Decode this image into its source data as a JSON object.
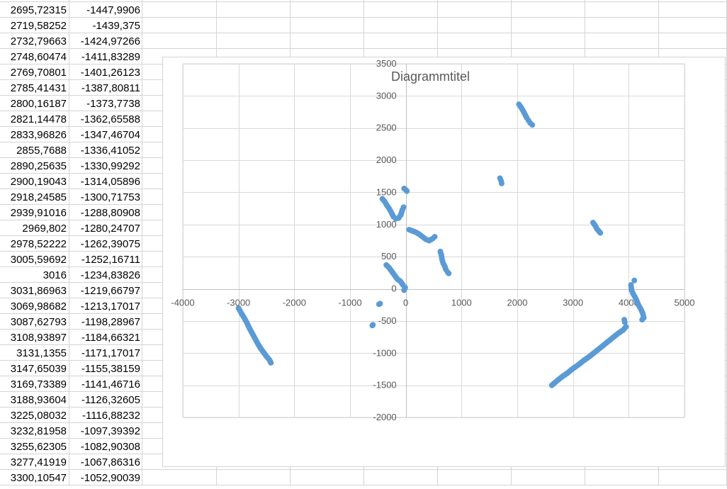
{
  "spreadsheet": {
    "rows": [
      [
        "2695,72315",
        "-1447,9906"
      ],
      [
        "2719,58252",
        "-1439,375"
      ],
      [
        "2732,79663",
        "-1424,97266"
      ],
      [
        "2748,60474",
        "-1411,83289"
      ],
      [
        "2769,70801",
        "-1401,26123"
      ],
      [
        "2785,41431",
        "-1387,80811"
      ],
      [
        "2800,16187",
        "-1373,7738"
      ],
      [
        "2821,14478",
        "-1362,65588"
      ],
      [
        "2833,96826",
        "-1347,46704"
      ],
      [
        "2855,7688",
        "-1336,41052"
      ],
      [
        "2890,25635",
        "-1330,99292"
      ],
      [
        "2900,19043",
        "-1314,05896"
      ],
      [
        "2918,24585",
        "-1300,71753"
      ],
      [
        "2939,91016",
        "-1288,80908"
      ],
      [
        "2969,802",
        "-1280,24707"
      ],
      [
        "2978,52222",
        "-1262,39075"
      ],
      [
        "3005,59692",
        "-1252,16711"
      ],
      [
        "3016",
        "-1234,83826"
      ],
      [
        "3031,86963",
        "-1219,66797"
      ],
      [
        "3069,98682",
        "-1213,17017"
      ],
      [
        "3087,62793",
        "-1198,28967"
      ],
      [
        "3108,93897",
        "-1184,66321"
      ],
      [
        "3131,1355",
        "-1171,17017"
      ],
      [
        "3147,65039",
        "-1155,38159"
      ],
      [
        "3169,73389",
        "-1141,46716"
      ],
      [
        "3188,93604",
        "-1126,32605"
      ],
      [
        "3225,08032",
        "-1116,88232"
      ],
      [
        "3232,81958",
        "-1097,39392"
      ],
      [
        "3255,62305",
        "-1082,90308"
      ],
      [
        "3277,41919",
        "-1067,86316"
      ],
      [
        "3300,10547",
        "-1052,90039"
      ]
    ]
  },
  "chart_data": {
    "type": "scatter",
    "title": "Diagrammtitel",
    "xlim": [
      -4000,
      5000
    ],
    "ylim": [
      -2000,
      3500
    ],
    "x_ticks": [
      -4000,
      -3000,
      -2000,
      -1000,
      0,
      1000,
      2000,
      3000,
      4000,
      5000
    ],
    "y_ticks": [
      -2000,
      -1500,
      -1000,
      -500,
      0,
      500,
      1000,
      1500,
      2000,
      2500,
      3000,
      3500
    ],
    "x_tick_labels": [
      "-4000",
      "-3000",
      "-2000",
      "-1000",
      "0",
      "1000",
      "2000",
      "3000",
      "4000",
      "5000"
    ],
    "y_tick_labels": [
      "-2000",
      "-1500",
      "-1000",
      "-500",
      "0",
      "500",
      "1000",
      "1500",
      "2000",
      "2500",
      "3000",
      "3500"
    ],
    "grid": true,
    "marker_color": "#5B9BD5",
    "segments": [
      [
        [
          -3000,
          -300
        ],
        [
          -2950,
          -380
        ],
        [
          -2900,
          -450
        ],
        [
          -2850,
          -530
        ],
        [
          -2800,
          -620
        ],
        [
          -2750,
          -700
        ],
        [
          -2700,
          -780
        ],
        [
          -2650,
          -860
        ],
        [
          -2600,
          -930
        ],
        [
          -2550,
          -990
        ],
        [
          -2500,
          -1050
        ],
        [
          -2450,
          -1100
        ],
        [
          -2420,
          -1150
        ]
      ],
      [
        [
          -600,
          -570
        ],
        [
          -590,
          -560
        ]
      ],
      [
        [
          -480,
          -240
        ],
        [
          -460,
          -230
        ]
      ],
      [
        [
          -350,
          370
        ],
        [
          -300,
          330
        ],
        [
          -250,
          270
        ],
        [
          -200,
          210
        ],
        [
          -150,
          150
        ],
        [
          -100,
          120
        ],
        [
          -50,
          60
        ]
      ],
      [
        [
          -30,
          -20
        ],
        [
          -20,
          0
        ],
        [
          -10,
          20
        ]
      ],
      [
        [
          -420,
          1400
        ],
        [
          -380,
          1360
        ],
        [
          -340,
          1300
        ],
        [
          -300,
          1250
        ],
        [
          -260,
          1190
        ],
        [
          -220,
          1120
        ],
        [
          -180,
          1090
        ],
        [
          -130,
          1100
        ],
        [
          -90,
          1150
        ],
        [
          -60,
          1230
        ],
        [
          -40,
          1270
        ]
      ],
      [
        [
          -30,
          1560
        ],
        [
          0,
          1540
        ],
        [
          20,
          1520
        ]
      ],
      [
        [
          60,
          920
        ],
        [
          120,
          900
        ],
        [
          180,
          880
        ],
        [
          240,
          850
        ],
        [
          300,
          810
        ],
        [
          360,
          770
        ],
        [
          420,
          750
        ],
        [
          480,
          780
        ],
        [
          520,
          810
        ]
      ],
      [
        [
          620,
          580
        ],
        [
          640,
          520
        ],
        [
          650,
          460
        ],
        [
          670,
          400
        ],
        [
          700,
          350
        ],
        [
          720,
          300
        ],
        [
          750,
          260
        ],
        [
          770,
          240
        ]
      ],
      [
        [
          1690,
          1720
        ],
        [
          1710,
          1680
        ],
        [
          1720,
          1640
        ]
      ],
      [
        [
          2030,
          2870
        ],
        [
          2070,
          2820
        ],
        [
          2110,
          2760
        ],
        [
          2140,
          2710
        ],
        [
          2170,
          2660
        ],
        [
          2200,
          2620
        ],
        [
          2230,
          2580
        ],
        [
          2270,
          2550
        ]
      ],
      [
        [
          3360,
          1030
        ],
        [
          3400,
          980
        ],
        [
          3430,
          930
        ],
        [
          3470,
          890
        ],
        [
          3490,
          870
        ]
      ],
      [
        [
          2620,
          -1500
        ],
        [
          2700,
          -1440
        ],
        [
          2800,
          -1370
        ],
        [
          2900,
          -1310
        ],
        [
          3000,
          -1240
        ],
        [
          3100,
          -1180
        ],
        [
          3200,
          -1110
        ],
        [
          3300,
          -1050
        ],
        [
          3400,
          -980
        ],
        [
          3500,
          -910
        ],
        [
          3600,
          -840
        ],
        [
          3700,
          -770
        ],
        [
          3800,
          -700
        ],
        [
          3900,
          -640
        ],
        [
          3950,
          -590
        ]
      ],
      [
        [
          3920,
          -480
        ],
        [
          3930,
          -520
        ]
      ],
      [
        [
          4040,
          60
        ],
        [
          4050,
          -20
        ],
        [
          4080,
          -80
        ],
        [
          4120,
          -140
        ],
        [
          4150,
          -200
        ],
        [
          4180,
          -260
        ],
        [
          4220,
          -320
        ],
        [
          4250,
          -380
        ],
        [
          4270,
          -450
        ]
      ],
      [
        [
          4100,
          130
        ]
      ],
      [
        [
          4240,
          -480
        ]
      ]
    ]
  }
}
